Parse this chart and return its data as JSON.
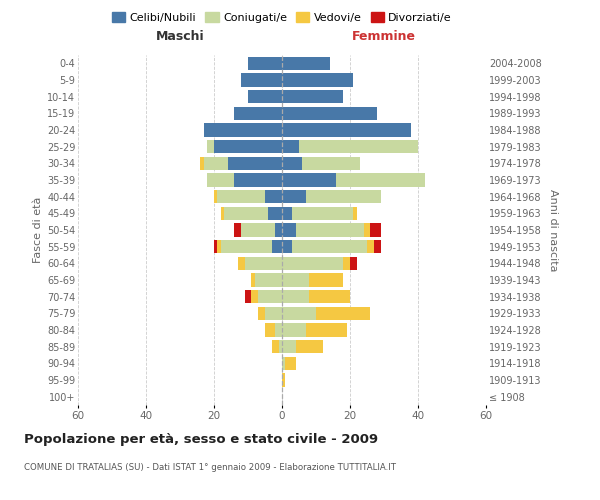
{
  "age_groups": [
    "100+",
    "95-99",
    "90-94",
    "85-89",
    "80-84",
    "75-79",
    "70-74",
    "65-69",
    "60-64",
    "55-59",
    "50-54",
    "45-49",
    "40-44",
    "35-39",
    "30-34",
    "25-29",
    "20-24",
    "15-19",
    "10-14",
    "5-9",
    "0-4"
  ],
  "birth_years": [
    "≤ 1908",
    "1909-1913",
    "1914-1918",
    "1919-1923",
    "1924-1928",
    "1929-1933",
    "1934-1938",
    "1939-1943",
    "1944-1948",
    "1949-1953",
    "1954-1958",
    "1959-1963",
    "1964-1968",
    "1969-1973",
    "1974-1978",
    "1979-1983",
    "1984-1988",
    "1989-1993",
    "1994-1998",
    "1999-2003",
    "2004-2008"
  ],
  "maschi": {
    "celibi": [
      0,
      0,
      0,
      0,
      0,
      0,
      0,
      0,
      0,
      3,
      2,
      4,
      5,
      14,
      16,
      20,
      23,
      14,
      10,
      12,
      10
    ],
    "coniugati": [
      0,
      0,
      0,
      1,
      2,
      5,
      7,
      8,
      11,
      15,
      10,
      13,
      14,
      8,
      7,
      2,
      0,
      0,
      0,
      0,
      0
    ],
    "vedovi": [
      0,
      0,
      0,
      2,
      3,
      2,
      2,
      1,
      2,
      1,
      0,
      1,
      1,
      0,
      1,
      0,
      0,
      0,
      0,
      0,
      0
    ],
    "divorziati": [
      0,
      0,
      0,
      0,
      0,
      0,
      2,
      0,
      0,
      1,
      2,
      0,
      0,
      0,
      0,
      0,
      0,
      0,
      0,
      0,
      0
    ]
  },
  "femmine": {
    "nubili": [
      0,
      0,
      0,
      0,
      0,
      0,
      0,
      0,
      0,
      3,
      4,
      3,
      7,
      16,
      6,
      5,
      38,
      28,
      18,
      21,
      14
    ],
    "coniugate": [
      0,
      0,
      1,
      4,
      7,
      10,
      8,
      8,
      18,
      22,
      20,
      18,
      22,
      26,
      17,
      35,
      0,
      0,
      0,
      0,
      0
    ],
    "vedove": [
      0,
      1,
      3,
      8,
      12,
      16,
      12,
      10,
      2,
      2,
      2,
      1,
      0,
      0,
      0,
      0,
      0,
      0,
      0,
      0,
      0
    ],
    "divorziate": [
      0,
      0,
      0,
      0,
      0,
      0,
      0,
      0,
      2,
      2,
      3,
      0,
      0,
      0,
      0,
      0,
      0,
      0,
      0,
      0,
      0
    ]
  },
  "colors": {
    "celibi_nubili": "#4878a8",
    "coniugati": "#c8d9a0",
    "vedovi": "#f5c842",
    "divorziati": "#cc1414"
  },
  "xlim": 60,
  "title": "Popolazione per età, sesso e stato civile - 2009",
  "subtitle": "COMUNE DI TRATALIAS (SU) - Dati ISTAT 1° gennaio 2009 - Elaborazione TUTTITALIA.IT",
  "ylabel_left": "Fasce di età",
  "ylabel_right": "Anni di nascita",
  "xlabel_maschi": "Maschi",
  "xlabel_femmine": "Femmine",
  "legend_labels": [
    "Celibi/Nubili",
    "Coniugati/e",
    "Vedovi/e",
    "Divorziati/e"
  ],
  "bg_color": "#ffffff",
  "grid_color": "#cccccc"
}
